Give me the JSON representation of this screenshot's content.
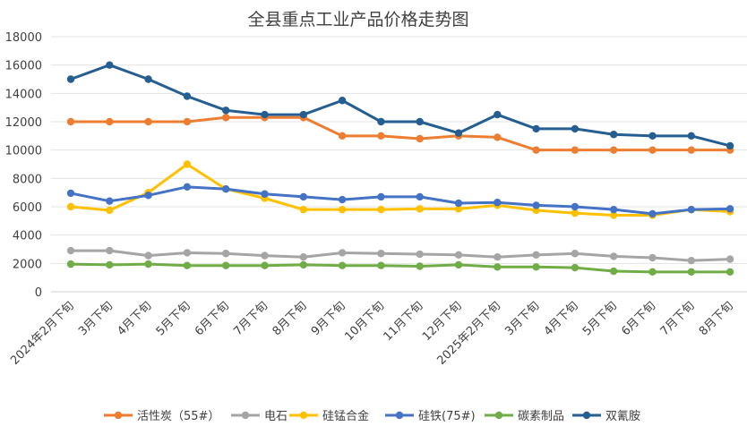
{
  "chart_data": {
    "type": "line",
    "title": "全县重点工业产品价格走势图",
    "xlabel": "",
    "ylabel": "",
    "ylim": [
      0,
      18000
    ],
    "y_ticks": [
      0,
      2000,
      4000,
      6000,
      8000,
      10000,
      12000,
      14000,
      16000,
      18000
    ],
    "grid": true,
    "legend_position": "bottom",
    "categories": [
      "2024年2月下旬",
      "3月下旬",
      "4月下旬",
      "5月下旬",
      "6月下旬",
      "7月下旬",
      "8月下旬",
      "9月下旬",
      "10月下旬",
      "11月下旬",
      "12月下旬",
      "2025年2月下旬",
      "3月下旬",
      "4月下旬",
      "5月下旬",
      "6月下旬",
      "7月下旬",
      "8月下旬"
    ],
    "series": [
      {
        "name": "活性炭（55#）",
        "color": "#ED7D31",
        "values": [
          12000,
          12000,
          12000,
          12000,
          12300,
          12300,
          12300,
          11000,
          11000,
          10800,
          11000,
          10900,
          10000,
          10000,
          10000,
          10000,
          10000,
          10000
        ]
      },
      {
        "name": "电石",
        "color": "#A5A5A5",
        "values": [
          2900,
          2900,
          2550,
          2750,
          2700,
          2550,
          2450,
          2750,
          2700,
          2650,
          2600,
          2450,
          2600,
          2700,
          2500,
          2400,
          2200,
          2300
        ]
      },
      {
        "name": "硅锰合金",
        "color": "#FFC000",
        "values": [
          6000,
          5750,
          7000,
          9000,
          7250,
          6600,
          5800,
          5800,
          5800,
          5850,
          5850,
          6100,
          5750,
          5550,
          5400,
          5400,
          5800,
          5650
        ]
      },
      {
        "name": "硅铁(75#)",
        "color": "#4472C4",
        "values": [
          6950,
          6400,
          6800,
          7400,
          7250,
          6900,
          6700,
          6500,
          6700,
          6700,
          6250,
          6300,
          6100,
          6000,
          5800,
          5500,
          5800,
          5850
        ]
      },
      {
        "name": "碳素制品",
        "color": "#70AD47",
        "values": [
          1950,
          1900,
          1950,
          1850,
          1850,
          1850,
          1900,
          1850,
          1850,
          1800,
          1900,
          1750,
          1750,
          1700,
          1450,
          1400,
          1400,
          1400
        ]
      },
      {
        "name": "双氰胺",
        "color": "#255E91",
        "values": [
          15000,
          16000,
          15000,
          13800,
          12800,
          12500,
          12500,
          13500,
          12000,
          12000,
          11200,
          12500,
          11500,
          11500,
          11100,
          11000,
          11000,
          10300
        ]
      }
    ]
  }
}
